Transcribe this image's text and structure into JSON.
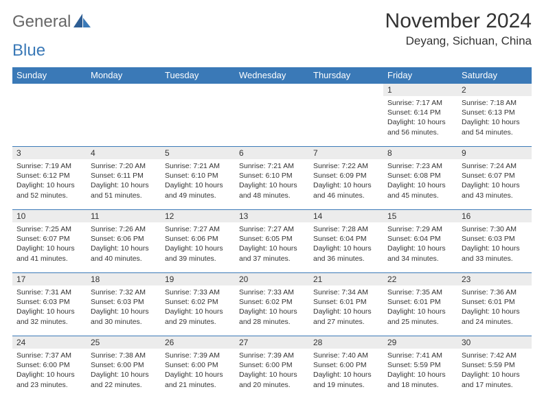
{
  "brand": {
    "part1": "General",
    "part2": "Blue"
  },
  "title": "November 2024",
  "location": "Deyang, Sichuan, China",
  "colors": {
    "header_bg": "#3a79b7",
    "header_text": "#ffffff",
    "daynum_bg": "#ececec",
    "text": "#333333",
    "row_border": "#3a79b7"
  },
  "day_headers": [
    "Sunday",
    "Monday",
    "Tuesday",
    "Wednesday",
    "Thursday",
    "Friday",
    "Saturday"
  ],
  "weeks": [
    [
      {
        "n": "",
        "sr": "",
        "ss": "",
        "dl": ""
      },
      {
        "n": "",
        "sr": "",
        "ss": "",
        "dl": ""
      },
      {
        "n": "",
        "sr": "",
        "ss": "",
        "dl": ""
      },
      {
        "n": "",
        "sr": "",
        "ss": "",
        "dl": ""
      },
      {
        "n": "",
        "sr": "",
        "ss": "",
        "dl": ""
      },
      {
        "n": "1",
        "sr": "Sunrise: 7:17 AM",
        "ss": "Sunset: 6:14 PM",
        "dl": "Daylight: 10 hours and 56 minutes."
      },
      {
        "n": "2",
        "sr": "Sunrise: 7:18 AM",
        "ss": "Sunset: 6:13 PM",
        "dl": "Daylight: 10 hours and 54 minutes."
      }
    ],
    [
      {
        "n": "3",
        "sr": "Sunrise: 7:19 AM",
        "ss": "Sunset: 6:12 PM",
        "dl": "Daylight: 10 hours and 52 minutes."
      },
      {
        "n": "4",
        "sr": "Sunrise: 7:20 AM",
        "ss": "Sunset: 6:11 PM",
        "dl": "Daylight: 10 hours and 51 minutes."
      },
      {
        "n": "5",
        "sr": "Sunrise: 7:21 AM",
        "ss": "Sunset: 6:10 PM",
        "dl": "Daylight: 10 hours and 49 minutes."
      },
      {
        "n": "6",
        "sr": "Sunrise: 7:21 AM",
        "ss": "Sunset: 6:10 PM",
        "dl": "Daylight: 10 hours and 48 minutes."
      },
      {
        "n": "7",
        "sr": "Sunrise: 7:22 AM",
        "ss": "Sunset: 6:09 PM",
        "dl": "Daylight: 10 hours and 46 minutes."
      },
      {
        "n": "8",
        "sr": "Sunrise: 7:23 AM",
        "ss": "Sunset: 6:08 PM",
        "dl": "Daylight: 10 hours and 45 minutes."
      },
      {
        "n": "9",
        "sr": "Sunrise: 7:24 AM",
        "ss": "Sunset: 6:07 PM",
        "dl": "Daylight: 10 hours and 43 minutes."
      }
    ],
    [
      {
        "n": "10",
        "sr": "Sunrise: 7:25 AM",
        "ss": "Sunset: 6:07 PM",
        "dl": "Daylight: 10 hours and 41 minutes."
      },
      {
        "n": "11",
        "sr": "Sunrise: 7:26 AM",
        "ss": "Sunset: 6:06 PM",
        "dl": "Daylight: 10 hours and 40 minutes."
      },
      {
        "n": "12",
        "sr": "Sunrise: 7:27 AM",
        "ss": "Sunset: 6:06 PM",
        "dl": "Daylight: 10 hours and 39 minutes."
      },
      {
        "n": "13",
        "sr": "Sunrise: 7:27 AM",
        "ss": "Sunset: 6:05 PM",
        "dl": "Daylight: 10 hours and 37 minutes."
      },
      {
        "n": "14",
        "sr": "Sunrise: 7:28 AM",
        "ss": "Sunset: 6:04 PM",
        "dl": "Daylight: 10 hours and 36 minutes."
      },
      {
        "n": "15",
        "sr": "Sunrise: 7:29 AM",
        "ss": "Sunset: 6:04 PM",
        "dl": "Daylight: 10 hours and 34 minutes."
      },
      {
        "n": "16",
        "sr": "Sunrise: 7:30 AM",
        "ss": "Sunset: 6:03 PM",
        "dl": "Daylight: 10 hours and 33 minutes."
      }
    ],
    [
      {
        "n": "17",
        "sr": "Sunrise: 7:31 AM",
        "ss": "Sunset: 6:03 PM",
        "dl": "Daylight: 10 hours and 32 minutes."
      },
      {
        "n": "18",
        "sr": "Sunrise: 7:32 AM",
        "ss": "Sunset: 6:03 PM",
        "dl": "Daylight: 10 hours and 30 minutes."
      },
      {
        "n": "19",
        "sr": "Sunrise: 7:33 AM",
        "ss": "Sunset: 6:02 PM",
        "dl": "Daylight: 10 hours and 29 minutes."
      },
      {
        "n": "20",
        "sr": "Sunrise: 7:33 AM",
        "ss": "Sunset: 6:02 PM",
        "dl": "Daylight: 10 hours and 28 minutes."
      },
      {
        "n": "21",
        "sr": "Sunrise: 7:34 AM",
        "ss": "Sunset: 6:01 PM",
        "dl": "Daylight: 10 hours and 27 minutes."
      },
      {
        "n": "22",
        "sr": "Sunrise: 7:35 AM",
        "ss": "Sunset: 6:01 PM",
        "dl": "Daylight: 10 hours and 25 minutes."
      },
      {
        "n": "23",
        "sr": "Sunrise: 7:36 AM",
        "ss": "Sunset: 6:01 PM",
        "dl": "Daylight: 10 hours and 24 minutes."
      }
    ],
    [
      {
        "n": "24",
        "sr": "Sunrise: 7:37 AM",
        "ss": "Sunset: 6:00 PM",
        "dl": "Daylight: 10 hours and 23 minutes."
      },
      {
        "n": "25",
        "sr": "Sunrise: 7:38 AM",
        "ss": "Sunset: 6:00 PM",
        "dl": "Daylight: 10 hours and 22 minutes."
      },
      {
        "n": "26",
        "sr": "Sunrise: 7:39 AM",
        "ss": "Sunset: 6:00 PM",
        "dl": "Daylight: 10 hours and 21 minutes."
      },
      {
        "n": "27",
        "sr": "Sunrise: 7:39 AM",
        "ss": "Sunset: 6:00 PM",
        "dl": "Daylight: 10 hours and 20 minutes."
      },
      {
        "n": "28",
        "sr": "Sunrise: 7:40 AM",
        "ss": "Sunset: 6:00 PM",
        "dl": "Daylight: 10 hours and 19 minutes."
      },
      {
        "n": "29",
        "sr": "Sunrise: 7:41 AM",
        "ss": "Sunset: 5:59 PM",
        "dl": "Daylight: 10 hours and 18 minutes."
      },
      {
        "n": "30",
        "sr": "Sunrise: 7:42 AM",
        "ss": "Sunset: 5:59 PM",
        "dl": "Daylight: 10 hours and 17 minutes."
      }
    ]
  ]
}
